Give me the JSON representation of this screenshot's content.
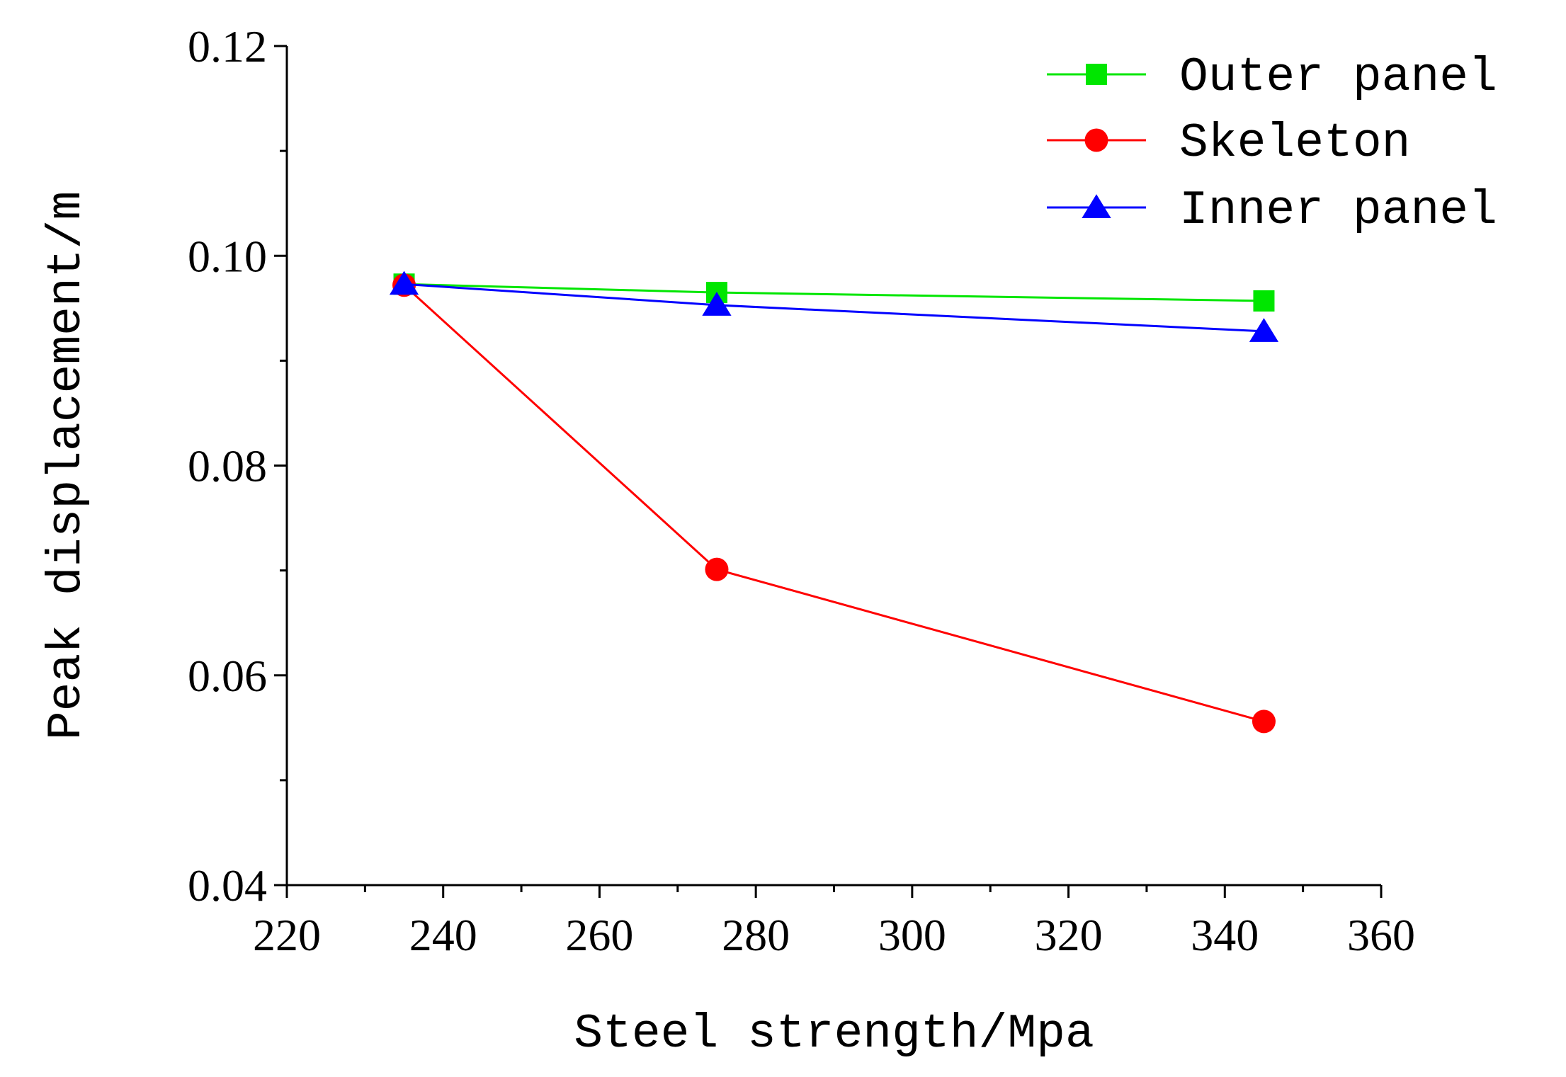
{
  "chart_data": {
    "type": "line",
    "xlabel": "Steel strength/Mpa",
    "ylabel": "Peak displacement/m",
    "xlim": [
      220,
      360
    ],
    "ylim": [
      0.04,
      0.12
    ],
    "xticks": [
      220,
      240,
      260,
      280,
      300,
      320,
      340,
      360
    ],
    "xtick_labels": [
      "220",
      "240",
      "260",
      "280",
      "300",
      "320",
      "340",
      "360"
    ],
    "yticks": [
      0.04,
      0.06,
      0.08,
      0.1,
      0.12
    ],
    "ytick_labels": [
      "0.04",
      "0.06",
      "0.08",
      "0.10",
      "0.12"
    ],
    "x": [
      235,
      275,
      345
    ],
    "series": [
      {
        "name": "Outer panel",
        "values": [
          0.0973,
          0.0965,
          0.0957
        ],
        "color": "#00e600",
        "marker": "square"
      },
      {
        "name": "Skeleton",
        "values": [
          0.0972,
          0.0701,
          0.0556
        ],
        "color": "#ff0000",
        "marker": "circle"
      },
      {
        "name": "Inner panel",
        "values": [
          0.0973,
          0.0953,
          0.0928
        ],
        "color": "#0000ff",
        "marker": "triangle"
      }
    ],
    "legend": "top-right",
    "grid": false
  }
}
